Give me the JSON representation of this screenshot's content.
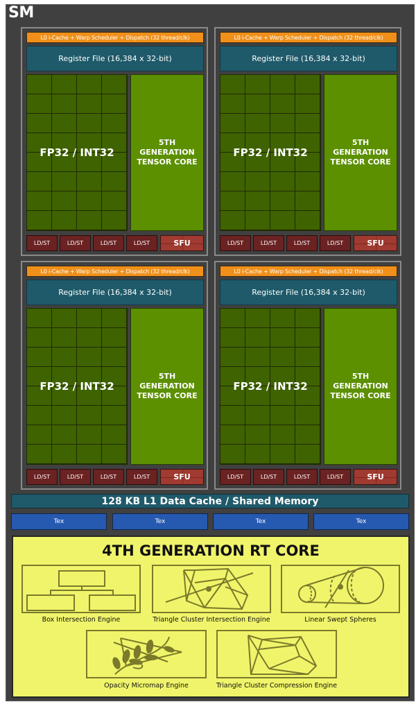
{
  "title": "SM",
  "partitions": [
    {
      "l0_label": "L0 i-Cache + Warp Scheduler + Dispatch (32 thread/clk)",
      "register_file_label": "Register File (16,384 x 32-bit)",
      "fp_label": "FP32 / INT32",
      "tensor_label": "5TH GENERATION TENSOR CORE",
      "ldst_units": [
        "LD/ST",
        "LD/ST",
        "LD/ST",
        "LD/ST"
      ],
      "sfu_label": "SFU"
    },
    {
      "l0_label": "L0 i-Cache + Warp Scheduler + Dispatch (32 thread/clk)",
      "register_file_label": "Register File (16,384 x 32-bit)",
      "fp_label": "FP32 / INT32",
      "tensor_label": "5TH GENERATION TENSOR CORE",
      "ldst_units": [
        "LD/ST",
        "LD/ST",
        "LD/ST",
        "LD/ST"
      ],
      "sfu_label": "SFU"
    },
    {
      "l0_label": "L0 i-Cache + Warp Scheduler + Dispatch (32 thread/clk)",
      "register_file_label": "Register File (16,384 x 32-bit)",
      "fp_label": "FP32 / INT32",
      "tensor_label": "5TH GENERATION TENSOR CORE",
      "ldst_units": [
        "LD/ST",
        "LD/ST",
        "LD/ST",
        "LD/ST"
      ],
      "sfu_label": "SFU"
    },
    {
      "l0_label": "L0 i-Cache + Warp Scheduler + Dispatch (32 thread/clk)",
      "register_file_label": "Register File (16,384 x 32-bit)",
      "fp_label": "FP32 / INT32",
      "tensor_label": "5TH GENERATION TENSOR CORE",
      "ldst_units": [
        "LD/ST",
        "LD/ST",
        "LD/ST",
        "LD/ST"
      ],
      "sfu_label": "SFU"
    }
  ],
  "fp_grid": {
    "columns": 4,
    "rows": 8
  },
  "l1_cache_label": "128 KB L1 Data Cache / Shared Memory",
  "tex_units": [
    "Tex",
    "Tex",
    "Tex",
    "Tex"
  ],
  "rt_core": {
    "title": "4TH GENERATION RT CORE",
    "engines": [
      {
        "label": "Box Intersection Engine",
        "icon": "box-hierarchy-icon"
      },
      {
        "label": "Triangle Cluster Intersection Engine",
        "icon": "triangle-cluster-ray-icon"
      },
      {
        "label": "Linear Swept Spheres",
        "icon": "swept-spheres-icon"
      },
      {
        "label": "Opacity Micromap Engine",
        "icon": "leaf-triangle-icon"
      },
      {
        "label": "Triangle Cluster Compression Engine",
        "icon": "triangle-cluster-icon"
      }
    ]
  },
  "colors": {
    "frame": "#404040",
    "l0": "#f0901a",
    "register_file": "#1f5a6a",
    "fp32": "#3f6300",
    "tensor": "#5c9000",
    "ldst": "#6b2222",
    "sfu": "#a13a30",
    "tex": "#2659b0",
    "rt_core": "#f0f46a",
    "rt_icon": "#7a7a2a"
  }
}
